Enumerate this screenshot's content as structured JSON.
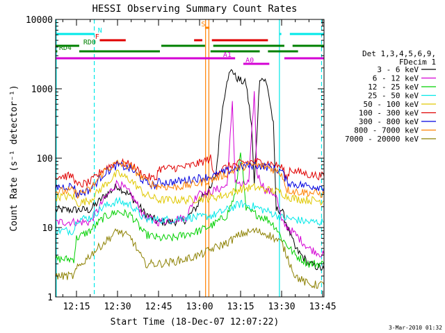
{
  "chart_data": {
    "type": "line",
    "title": "HESSI Observing Summary Count Rates",
    "xlabel": "Start Time (18-Dec-07 12:07:22)",
    "ylabel": "Count Rate (s⁻¹ detector⁻¹)",
    "footer_date": "3-Mar-2010 01:32",
    "x_unit": "minutes after 12:00",
    "xlim": [
      7.37,
      105.5
    ],
    "ylim": [
      1,
      10000
    ],
    "yscale": "log",
    "x_ticks": [
      {
        "t": 15,
        "label": "12:15"
      },
      {
        "t": 30,
        "label": "12:30"
      },
      {
        "t": 45,
        "label": "12:45"
      },
      {
        "t": 60,
        "label": "13:00"
      },
      {
        "t": 75,
        "label": "13:15"
      },
      {
        "t": 90,
        "label": "13:30"
      },
      {
        "t": 105,
        "label": "13:45"
      }
    ],
    "y_ticks": [
      {
        "v": 1,
        "label": "1"
      },
      {
        "v": 10,
        "label": "10"
      },
      {
        "v": 100,
        "label": "100"
      },
      {
        "v": 1000,
        "label": "1000"
      },
      {
        "v": 10000,
        "label": "10000"
      }
    ],
    "legend": {
      "header": [
        "Det 1,3,4,5,6,9,",
        "FDecim 1"
      ],
      "placement": "right"
    },
    "series": [
      {
        "name": "3 - 6 keV",
        "color": "#000000",
        "points": [
          [
            7.4,
            18
          ],
          [
            20,
            18
          ],
          [
            25,
            28
          ],
          [
            30,
            40
          ],
          [
            35,
            28
          ],
          [
            40,
            16
          ],
          [
            45,
            12
          ],
          [
            50,
            12
          ],
          [
            55,
            13
          ],
          [
            59,
            20
          ],
          [
            61,
            30
          ],
          [
            64,
            35
          ],
          [
            66,
            60
          ],
          [
            68,
            400
          ],
          [
            70,
            1400
          ],
          [
            72,
            1900
          ],
          [
            73,
            1500
          ],
          [
            75,
            1300
          ],
          [
            77,
            1200
          ],
          [
            79,
            300
          ],
          [
            80,
            40
          ],
          [
            82,
            1500
          ],
          [
            84,
            1300
          ],
          [
            85,
            1000
          ],
          [
            87,
            300
          ],
          [
            88,
            18
          ],
          [
            90,
            18
          ],
          [
            95,
            5
          ],
          [
            100,
            3
          ],
          [
            105.5,
            2.5
          ]
        ]
      },
      {
        "name": "6 - 12 keV",
        "color": "#d400d4",
        "points": [
          [
            7.4,
            12
          ],
          [
            20,
            12
          ],
          [
            25,
            25
          ],
          [
            30,
            45
          ],
          [
            35,
            30
          ],
          [
            40,
            14
          ],
          [
            45,
            12
          ],
          [
            50,
            13
          ],
          [
            55,
            14
          ],
          [
            58,
            25
          ],
          [
            60,
            35
          ],
          [
            62,
            30
          ],
          [
            66,
            35
          ],
          [
            70,
            40
          ],
          [
            72,
            600
          ],
          [
            73,
            50
          ],
          [
            75,
            40
          ],
          [
            78,
            45
          ],
          [
            80,
            900
          ],
          [
            81,
            60
          ],
          [
            84,
            35
          ],
          [
            88,
            30
          ],
          [
            90,
            12
          ],
          [
            95,
            8
          ],
          [
            100,
            5
          ],
          [
            105.5,
            4
          ]
        ]
      },
      {
        "name": "12 - 25 keV",
        "color": "#00d000",
        "points": [
          [
            7.4,
            3.5
          ],
          [
            14,
            3.5
          ],
          [
            15,
            7
          ],
          [
            20,
            9
          ],
          [
            25,
            14
          ],
          [
            30,
            17
          ],
          [
            35,
            15
          ],
          [
            40,
            8
          ],
          [
            45,
            7
          ],
          [
            50,
            7
          ],
          [
            55,
            8
          ],
          [
            60,
            9
          ],
          [
            65,
            11
          ],
          [
            70,
            15
          ],
          [
            73,
            30
          ],
          [
            75,
            130
          ],
          [
            77,
            18
          ],
          [
            80,
            16
          ],
          [
            85,
            13
          ],
          [
            88,
            10
          ],
          [
            90,
            7
          ],
          [
            95,
            4
          ],
          [
            100,
            3
          ],
          [
            105.5,
            3
          ]
        ]
      },
      {
        "name": "25 - 50 keV",
        "color": "#00e8e8",
        "points": [
          [
            7.4,
            9
          ],
          [
            14,
            9
          ],
          [
            15,
            13
          ],
          [
            20,
            14
          ],
          [
            25,
            20
          ],
          [
            30,
            24
          ],
          [
            35,
            21
          ],
          [
            40,
            13
          ],
          [
            45,
            13
          ],
          [
            50,
            13
          ],
          [
            55,
            14
          ],
          [
            60,
            14
          ],
          [
            65,
            15
          ],
          [
            70,
            18
          ],
          [
            75,
            22
          ],
          [
            80,
            20
          ],
          [
            85,
            17
          ],
          [
            90,
            14
          ],
          [
            95,
            13
          ],
          [
            100,
            12
          ],
          [
            105.5,
            12
          ]
        ]
      },
      {
        "name": "50 - 100 keV",
        "color": "#e0c800",
        "points": [
          [
            7.4,
            28
          ],
          [
            14,
            28
          ],
          [
            15,
            22
          ],
          [
            20,
            25
          ],
          [
            25,
            40
          ],
          [
            30,
            60
          ],
          [
            35,
            48
          ],
          [
            40,
            30
          ],
          [
            45,
            25
          ],
          [
            50,
            25
          ],
          [
            55,
            25
          ],
          [
            60,
            26
          ],
          [
            65,
            27
          ],
          [
            70,
            30
          ],
          [
            75,
            36
          ],
          [
            80,
            38
          ],
          [
            85,
            35
          ],
          [
            90,
            32
          ],
          [
            92,
            28
          ],
          [
            95,
            26
          ],
          [
            100,
            25
          ],
          [
            105.5,
            24
          ]
        ]
      },
      {
        "name": "100 - 300 keV",
        "color": "#e00000",
        "points": [
          [
            7.4,
            55
          ],
          [
            14,
            55
          ],
          [
            15,
            40
          ],
          [
            20,
            45
          ],
          [
            25,
            70
          ],
          [
            30,
            88
          ],
          [
            35,
            80
          ],
          [
            40,
            55
          ],
          [
            44,
            50
          ],
          [
            45,
            70
          ],
          [
            50,
            72
          ],
          [
            55,
            75
          ],
          [
            60,
            85
          ],
          [
            64,
            100
          ],
          [
            65,
            60
          ],
          [
            70,
            75
          ],
          [
            75,
            85
          ],
          [
            80,
            90
          ],
          [
            85,
            85
          ],
          [
            90,
            75
          ],
          [
            92,
            50
          ],
          [
            93,
            70
          ],
          [
            95,
            65
          ],
          [
            100,
            58
          ],
          [
            105.5,
            55
          ]
        ]
      },
      {
        "name": "300 - 800 keV",
        "color": "#0000e0",
        "points": [
          [
            7.4,
            38
          ],
          [
            14,
            40
          ],
          [
            15,
            30
          ],
          [
            20,
            35
          ],
          [
            25,
            60
          ],
          [
            30,
            80
          ],
          [
            35,
            70
          ],
          [
            40,
            45
          ],
          [
            44,
            40
          ],
          [
            45,
            45
          ],
          [
            50,
            45
          ],
          [
            55,
            48
          ],
          [
            60,
            52
          ],
          [
            65,
            55
          ],
          [
            70,
            65
          ],
          [
            75,
            75
          ],
          [
            80,
            80
          ],
          [
            85,
            75
          ],
          [
            90,
            65
          ],
          [
            92,
            45
          ],
          [
            95,
            42
          ],
          [
            100,
            40
          ],
          [
            105.5,
            38
          ]
        ]
      },
      {
        "name": "800 - 7000 keV",
        "color": "#ff8000",
        "points": [
          [
            7.4,
            33
          ],
          [
            14,
            34
          ],
          [
            15,
            30
          ],
          [
            20,
            35
          ],
          [
            25,
            65
          ],
          [
            30,
            85
          ],
          [
            35,
            75
          ],
          [
            40,
            48
          ],
          [
            44,
            40
          ],
          [
            45,
            40
          ],
          [
            50,
            38
          ],
          [
            55,
            40
          ],
          [
            60,
            44
          ],
          [
            65,
            50
          ],
          [
            70,
            60
          ],
          [
            75,
            75
          ],
          [
            80,
            80
          ],
          [
            85,
            75
          ],
          [
            90,
            60
          ],
          [
            92,
            35
          ],
          [
            95,
            33
          ],
          [
            100,
            32
          ],
          [
            105.5,
            30
          ]
        ]
      },
      {
        "name": "7000 - 20000 keV",
        "color": "#8c8000",
        "points": [
          [
            7.4,
            2
          ],
          [
            14,
            2
          ],
          [
            15,
            2.5
          ],
          [
            20,
            4
          ],
          [
            25,
            6
          ],
          [
            30,
            9
          ],
          [
            35,
            7
          ],
          [
            40,
            3
          ],
          [
            45,
            3
          ],
          [
            50,
            3.2
          ],
          [
            55,
            3.5
          ],
          [
            60,
            4
          ],
          [
            65,
            5
          ],
          [
            70,
            6
          ],
          [
            75,
            8
          ],
          [
            80,
            9
          ],
          [
            85,
            8
          ],
          [
            90,
            6
          ],
          [
            95,
            2
          ],
          [
            100,
            1.5
          ],
          [
            105.5,
            1.5
          ]
        ]
      }
    ],
    "vlines": [
      {
        "t": 7.6,
        "color": "#00e8e8",
        "dash": false
      },
      {
        "t": 21.5,
        "color": "#00e8e8",
        "dash": true
      },
      {
        "t": 62.2,
        "color": "#ff8000",
        "dash": false
      },
      {
        "t": 63.4,
        "color": "#ff8000",
        "dash": false
      },
      {
        "t": 89.2,
        "color": "#00e8e8",
        "dash": false
      },
      {
        "t": 104.6,
        "color": "#00e8e8",
        "dash": true
      }
    ],
    "flag_bars": [
      {
        "label": "N",
        "color": "#00e8e8",
        "segments": [
          [
            7.4,
            21.5
          ],
          [
            89.2,
            89.9
          ],
          [
            93,
            105.5
          ]
        ],
        "label_t": 22.8,
        "row": 0
      },
      {
        "label": "S",
        "color": "#ff8000",
        "segments": [
          [
            62.0,
            63.6
          ]
        ],
        "label_t": 60.6,
        "row": -1
      },
      {
        "label": "F",
        "color": "#e00000",
        "segments": [
          [
            23.5,
            33
          ],
          [
            58,
            61
          ],
          [
            64.5,
            85
          ]
        ],
        "label_t": 21.8,
        "row": 1
      },
      {
        "label": "RD0",
        "color": "#008000",
        "segments": [
          [
            7.4,
            16
          ],
          [
            46,
            62
          ],
          [
            65,
            91
          ],
          [
            94,
            105.5
          ]
        ],
        "label_t": 17.5,
        "row": 2
      },
      {
        "label": "RD4",
        "color": "#008000",
        "segments": [
          [
            7.4,
            8
          ],
          [
            16,
            45.5
          ],
          [
            64,
            82
          ],
          [
            85,
            96
          ]
        ],
        "label_t": 8.6,
        "row": 3
      },
      {
        "label": "A1",
        "color": "#d400d4",
        "segments": [
          [
            7.4,
            73
          ],
          [
            91,
            105.5
          ]
        ],
        "label_t": 68.6,
        "row": 4
      },
      {
        "label": "A0",
        "color": "#d400d4",
        "segments": [
          [
            76,
            85.5
          ]
        ],
        "label_t": 76.8,
        "row": 5
      }
    ]
  }
}
